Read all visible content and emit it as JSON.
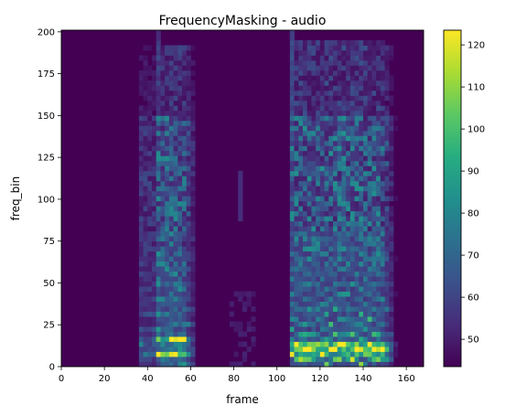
{
  "chart_data": {
    "type": "heatmap",
    "title": "FrequencyMasking - audio",
    "xlabel": "frame",
    "ylabel": "freq_bin",
    "xlim": [
      0,
      168
    ],
    "ylim": [
      0,
      201
    ],
    "xticks": [
      0,
      20,
      40,
      60,
      80,
      100,
      120,
      140,
      160
    ],
    "yticks": [
      0,
      25,
      50,
      75,
      100,
      125,
      150,
      175,
      200
    ],
    "colorbar": {
      "colormap": "viridis",
      "range": [
        43.5,
        123.5
      ],
      "ticks": [
        50,
        60,
        70,
        80,
        90,
        100,
        110,
        120
      ]
    },
    "background_level": 44,
    "regions": [
      {
        "x": [
          36,
          62
        ],
        "y": [
          0,
          200
        ],
        "peak": 118
      },
      {
        "x": [
          78,
          90
        ],
        "y": [
          0,
          60
        ],
        "peak": 62
      },
      {
        "x": [
          106,
          155
        ],
        "y": [
          0,
          200
        ],
        "peak": 122
      }
    ]
  }
}
